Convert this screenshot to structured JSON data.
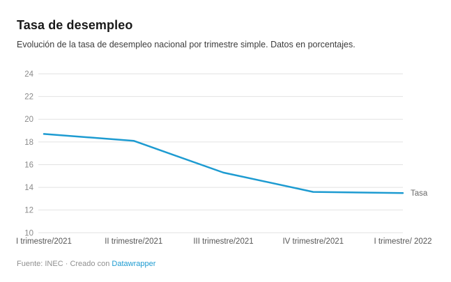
{
  "header": {
    "title": "Tasa de desempleo",
    "subtitle": "Evolución de la tasa de desempleo nacional por trimestre simple. Datos en porcentajes."
  },
  "chart_data": {
    "type": "line",
    "categories": [
      "I trimestre/2021",
      "II trimestre/2021",
      "III trimestre/2021",
      "IV trimestre/2021",
      "I trimestre/ 2022"
    ],
    "series": [
      {
        "name": "Tasa",
        "values": [
          18.7,
          18.1,
          15.3,
          13.6,
          13.5
        ]
      }
    ],
    "title": "Tasa de desempleo",
    "xlabel": "",
    "ylabel": "",
    "ylim": [
      10,
      24
    ],
    "yticks": [
      24,
      22,
      20,
      18,
      16,
      14,
      12,
      10
    ],
    "grid": true,
    "legend_position": "end-of-line",
    "line_color": "#1d9bd1",
    "gridline_color": "#e2e2e2",
    "y_tick_color": "#8a8a8a",
    "x_tick_color": "#565656",
    "series_label_color": "#6a6a6a"
  },
  "footer": {
    "source_prefix": "Fuente:",
    "source": "INEC",
    "separator": "·",
    "credit": "Creado con",
    "tool_link": "Datawrapper",
    "link_color": "#1d9bd1"
  }
}
